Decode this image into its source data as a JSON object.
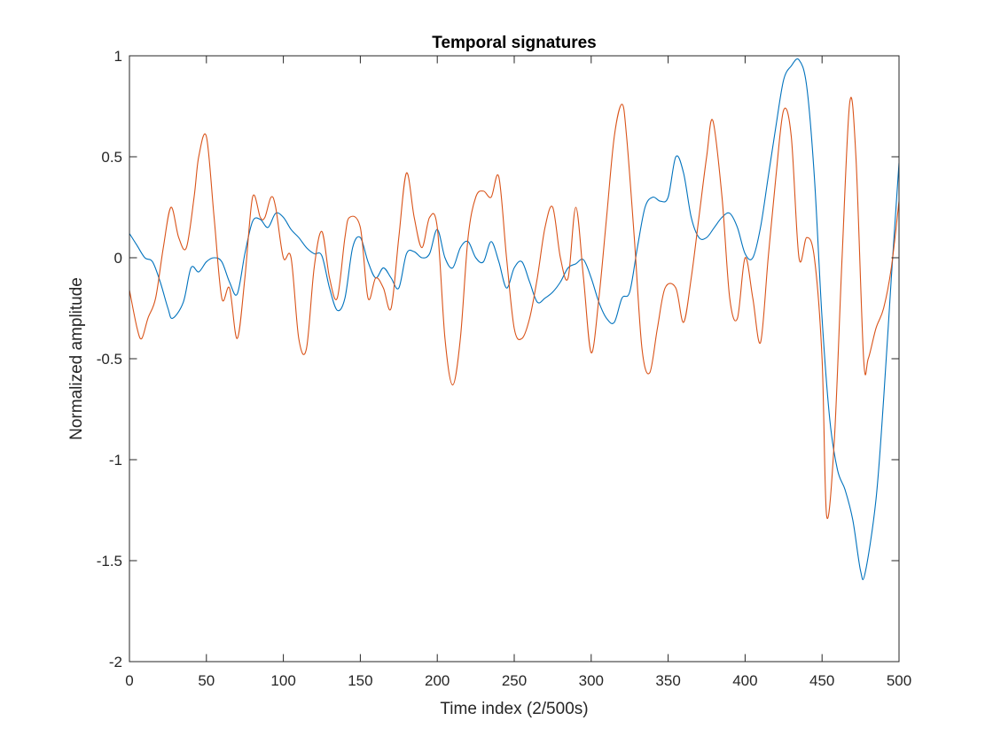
{
  "chart_data": {
    "type": "line",
    "title": "Temporal signatures",
    "xlabel": "Time index (2/500s)",
    "ylabel": "Normalized amplitude",
    "xlim": [
      0,
      500
    ],
    "ylim": [
      -2,
      1
    ],
    "xticks": [
      0,
      50,
      100,
      150,
      200,
      250,
      300,
      350,
      400,
      450,
      500
    ],
    "yticks": [
      -2,
      -1.5,
      -1,
      -0.5,
      0,
      0.5,
      1
    ],
    "ytick_labels": [
      "-2",
      "-1.5",
      "-1",
      "-0.5",
      "0",
      "0.5",
      "1"
    ],
    "grid": false,
    "series": [
      {
        "color": "#0072BD",
        "x": [
          0,
          5,
          10,
          15,
          20,
          25,
          28,
          35,
          40,
          45,
          50,
          55,
          60,
          65,
          70,
          75,
          80,
          85,
          90,
          95,
          100,
          105,
          110,
          115,
          120,
          125,
          130,
          135,
          140,
          145,
          150,
          155,
          160,
          165,
          170,
          175,
          180,
          185,
          190,
          195,
          200,
          205,
          210,
          215,
          220,
          225,
          230,
          235,
          240,
          245,
          250,
          255,
          260,
          265,
          270,
          275,
          280,
          285,
          290,
          295,
          300,
          305,
          310,
          315,
          320,
          325,
          330,
          335,
          340,
          345,
          350,
          355,
          360,
          365,
          370,
          375,
          380,
          385,
          390,
          395,
          400,
          405,
          410,
          415,
          420,
          425,
          430,
          435,
          440,
          445,
          450,
          455,
          460,
          465,
          470,
          475,
          478,
          485,
          490,
          495,
          500
        ],
        "values": [
          0.12,
          0.06,
          0.0,
          -0.02,
          -0.12,
          -0.25,
          -0.3,
          -0.22,
          -0.05,
          -0.07,
          -0.02,
          0.0,
          -0.02,
          -0.12,
          -0.18,
          0.02,
          0.18,
          0.19,
          0.15,
          0.22,
          0.2,
          0.14,
          0.1,
          0.05,
          0.02,
          0.01,
          -0.15,
          -0.26,
          -0.2,
          0.05,
          0.1,
          -0.02,
          -0.1,
          -0.05,
          -0.1,
          -0.15,
          0.02,
          0.03,
          0.0,
          0.02,
          0.14,
          0.0,
          -0.05,
          0.05,
          0.08,
          0.0,
          -0.02,
          0.08,
          -0.02,
          -0.15,
          -0.05,
          -0.02,
          -0.12,
          -0.22,
          -0.2,
          -0.17,
          -0.12,
          -0.05,
          -0.03,
          -0.01,
          -0.1,
          -0.22,
          -0.3,
          -0.32,
          -0.2,
          -0.17,
          0.05,
          0.25,
          0.3,
          0.28,
          0.3,
          0.5,
          0.42,
          0.2,
          0.1,
          0.1,
          0.15,
          0.2,
          0.22,
          0.15,
          0.02,
          0.0,
          0.15,
          0.4,
          0.65,
          0.88,
          0.95,
          0.98,
          0.85,
          0.4,
          -0.3,
          -0.8,
          -1.05,
          -1.15,
          -1.3,
          -1.55,
          -1.56,
          -1.2,
          -0.7,
          -0.1,
          0.47
        ]
      },
      {
        "color": "#D95319",
        "x": [
          0,
          5,
          8,
          12,
          17,
          22,
          27,
          32,
          37,
          42,
          45,
          50,
          55,
          60,
          65,
          70,
          75,
          80,
          85,
          88,
          92,
          95,
          100,
          105,
          110,
          115,
          120,
          125,
          130,
          135,
          140,
          143,
          150,
          155,
          160,
          165,
          170,
          175,
          180,
          185,
          190,
          195,
          200,
          205,
          210,
          215,
          220,
          225,
          230,
          235,
          240,
          245,
          250,
          255,
          260,
          265,
          270,
          275,
          280,
          285,
          290,
          295,
          300,
          305,
          310,
          315,
          320,
          323,
          328,
          333,
          338,
          343,
          348,
          355,
          360,
          365,
          370,
          375,
          379,
          385,
          390,
          395,
          400,
          405,
          410,
          415,
          420,
          425,
          430,
          435,
          440,
          445,
          450,
          453,
          458,
          463,
          468,
          472,
          477,
          480,
          485,
          490,
          495,
          500
        ],
        "values": [
          -0.16,
          -0.35,
          -0.4,
          -0.3,
          -0.2,
          0.05,
          0.25,
          0.1,
          0.05,
          0.3,
          0.5,
          0.6,
          0.2,
          -0.2,
          -0.15,
          -0.4,
          -0.1,
          0.3,
          0.2,
          0.2,
          0.3,
          0.25,
          0.0,
          0.0,
          -0.4,
          -0.45,
          -0.05,
          0.13,
          -0.1,
          -0.2,
          0.1,
          0.2,
          0.15,
          -0.2,
          -0.1,
          -0.15,
          -0.25,
          0.1,
          0.42,
          0.2,
          0.05,
          0.2,
          0.15,
          -0.4,
          -0.63,
          -0.4,
          0.1,
          0.3,
          0.33,
          0.3,
          0.4,
          0.0,
          -0.35,
          -0.4,
          -0.3,
          -0.1,
          0.15,
          0.25,
          0.0,
          -0.1,
          0.25,
          -0.1,
          -0.47,
          -0.2,
          0.2,
          0.6,
          0.76,
          0.6,
          0.1,
          -0.45,
          -0.57,
          -0.35,
          -0.15,
          -0.15,
          -0.32,
          -0.1,
          0.2,
          0.5,
          0.68,
          0.3,
          -0.2,
          -0.3,
          0.0,
          -0.2,
          -0.42,
          0.0,
          0.4,
          0.73,
          0.6,
          0.0,
          0.1,
          0.0,
          -0.5,
          -1.28,
          -0.9,
          0.0,
          0.77,
          0.5,
          -0.5,
          -0.5,
          -0.35,
          -0.25,
          -0.05,
          0.28
        ]
      }
    ]
  }
}
